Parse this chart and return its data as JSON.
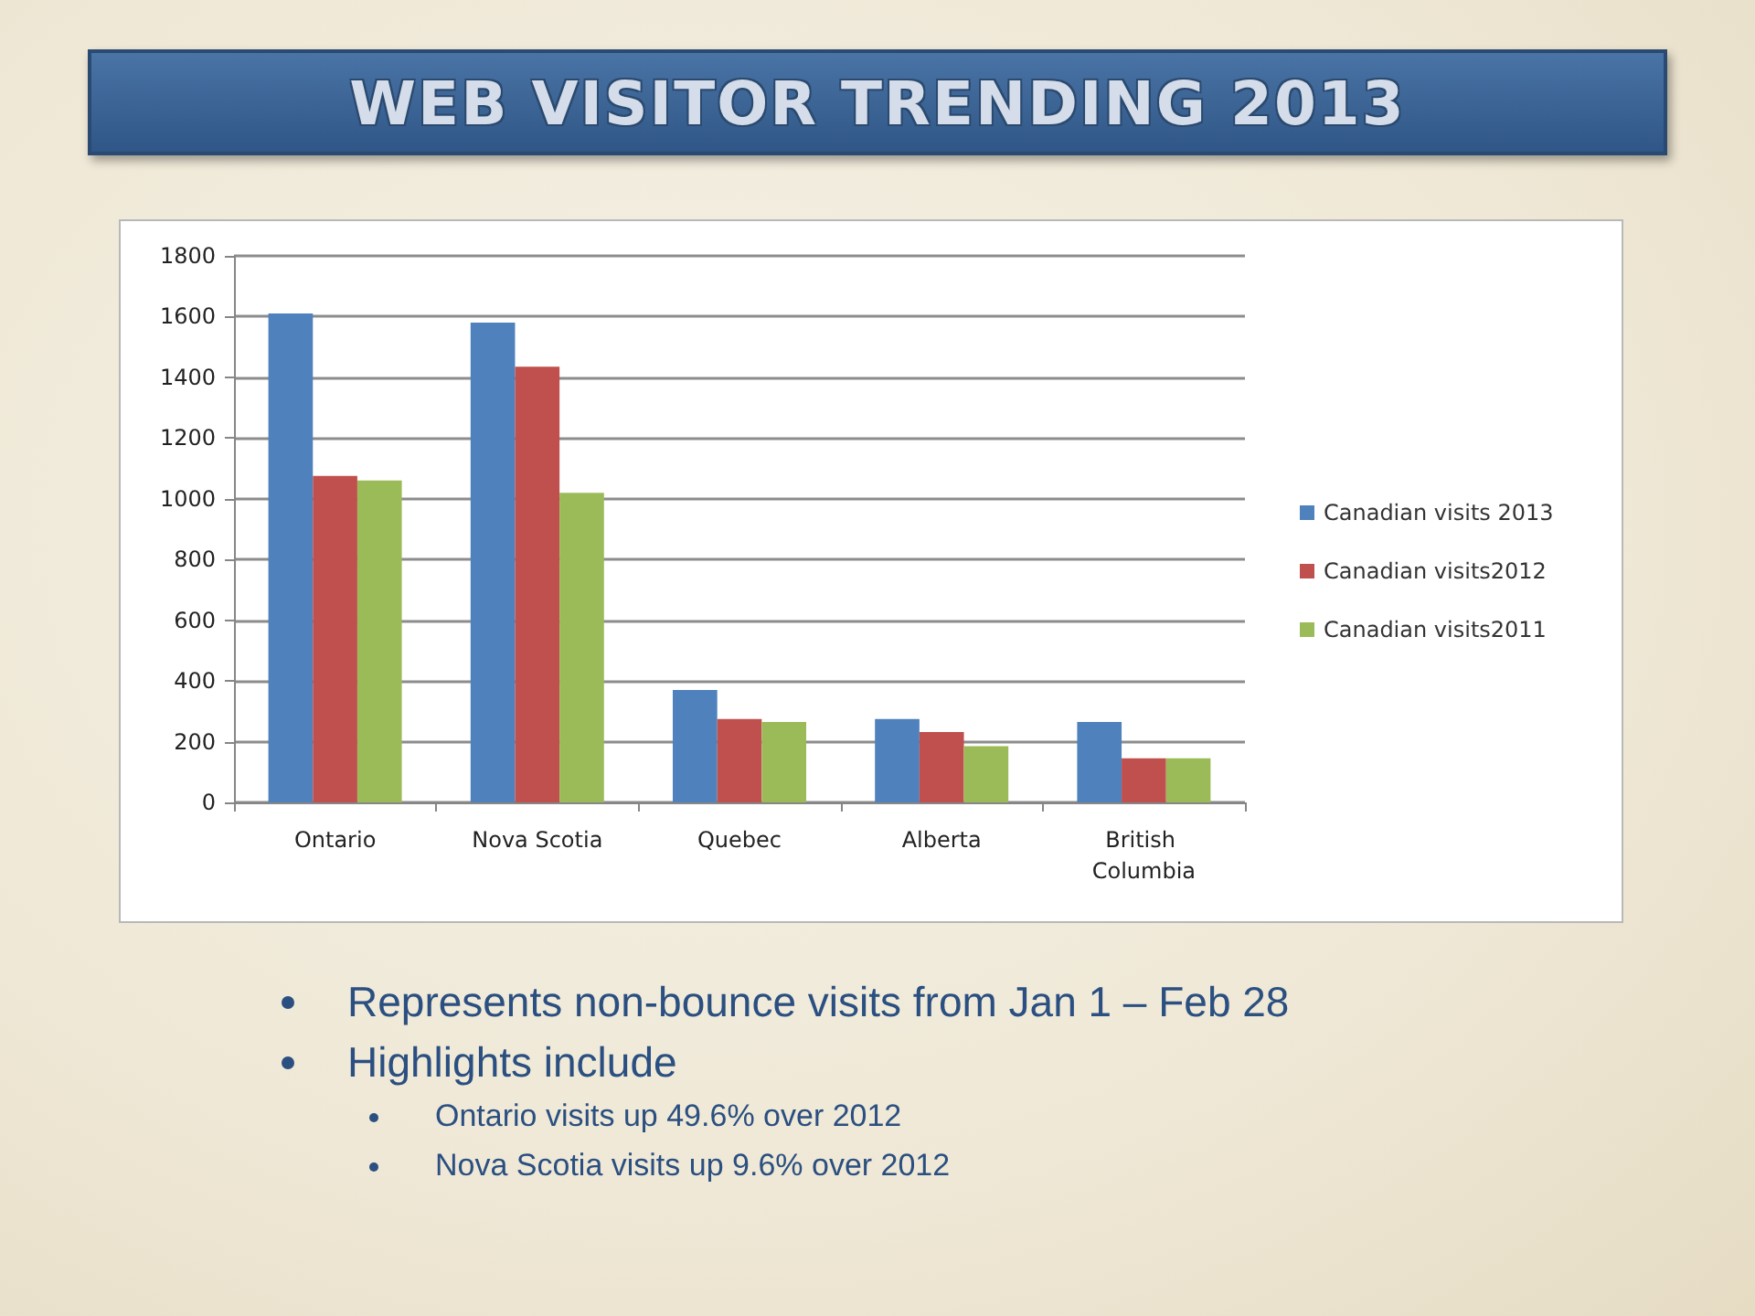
{
  "chart_data": {
    "type": "bar",
    "title": "WEB VISITOR TRENDING 2013",
    "categories": [
      "Ontario",
      "Nova Scotia",
      "Quebec",
      "Alberta",
      "British Columbia"
    ],
    "series": [
      {
        "name": "Canadian visits 2013",
        "color": "#4f81bd",
        "values": [
          1610,
          1580,
          370,
          275,
          265
        ]
      },
      {
        "name": "Canadian visits2012",
        "color": "#c0504d",
        "values": [
          1075,
          1435,
          275,
          232,
          145
        ]
      },
      {
        "name": "Canadian visits2011",
        "color": "#9bbb59",
        "values": [
          1060,
          1020,
          265,
          185,
          145
        ]
      }
    ],
    "ylim": [
      0,
      1800
    ],
    "yticks": [
      0,
      200,
      400,
      600,
      800,
      1000,
      1200,
      1400,
      1600,
      1800
    ],
    "grid": "y",
    "legend": "right",
    "annotations": [
      "Represents non-bounce visits from Jan 1 – Feb 28",
      "Highlights include",
      "Ontario visits up 49.6% over 2012",
      "Nova Scotia visits up 9.6% over 2012"
    ]
  }
}
